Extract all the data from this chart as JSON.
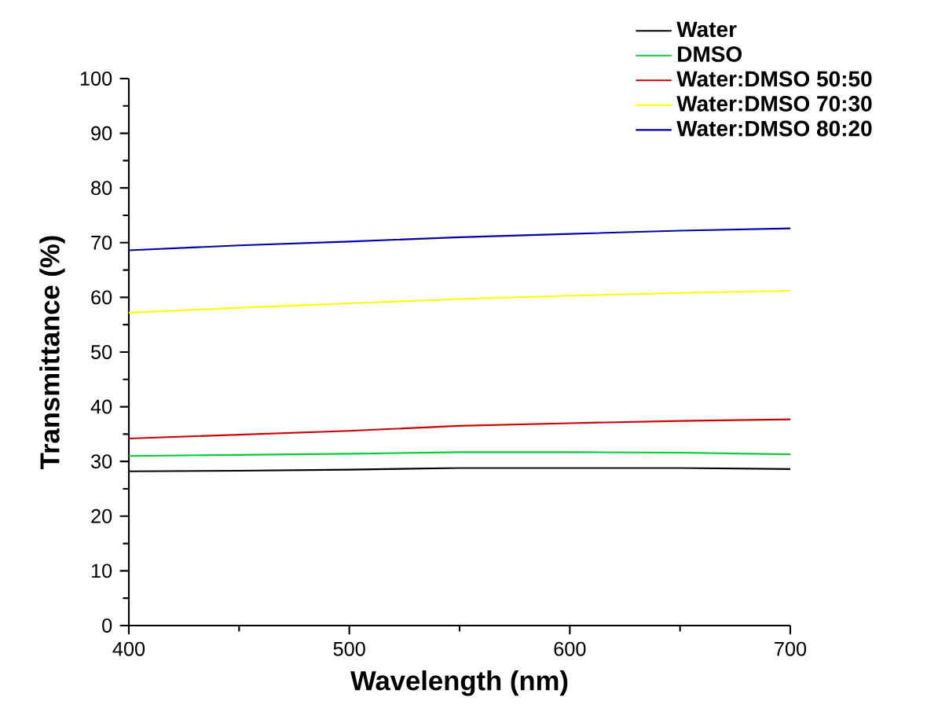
{
  "chart_data": {
    "type": "line",
    "xlabel": "Wavelength (nm)",
    "ylabel": "Transmittance (%)",
    "x": [
      400,
      450,
      500,
      550,
      600,
      650,
      700
    ],
    "series": [
      {
        "name": "Water",
        "color": "#000000",
        "values": [
          28.2,
          28.3,
          28.5,
          28.8,
          28.8,
          28.8,
          28.6
        ]
      },
      {
        "name": "DMSO",
        "color": "#00cc33",
        "values": [
          31.0,
          31.2,
          31.4,
          31.7,
          31.7,
          31.6,
          31.3
        ]
      },
      {
        "name": "Water:DMSO 50:50",
        "color": "#cc0000",
        "values": [
          34.2,
          34.9,
          35.6,
          36.5,
          37.0,
          37.4,
          37.7
        ]
      },
      {
        "name": "Water:DMSO 70:30",
        "color": "#ffff00",
        "values": [
          57.2,
          58.1,
          58.9,
          59.7,
          60.3,
          60.8,
          61.2
        ]
      },
      {
        "name": "Water:DMSO 80:20",
        "color": "#0000aa",
        "values": [
          68.6,
          69.5,
          70.2,
          71.0,
          71.6,
          72.2,
          72.6
        ]
      }
    ],
    "xlim": [
      400,
      700
    ],
    "ylim": [
      0,
      100
    ],
    "xticks": [
      400,
      500,
      600,
      700
    ],
    "yticks": [
      0,
      10,
      20,
      30,
      40,
      50,
      60,
      70,
      80,
      90,
      100
    ],
    "legend": "top right"
  }
}
